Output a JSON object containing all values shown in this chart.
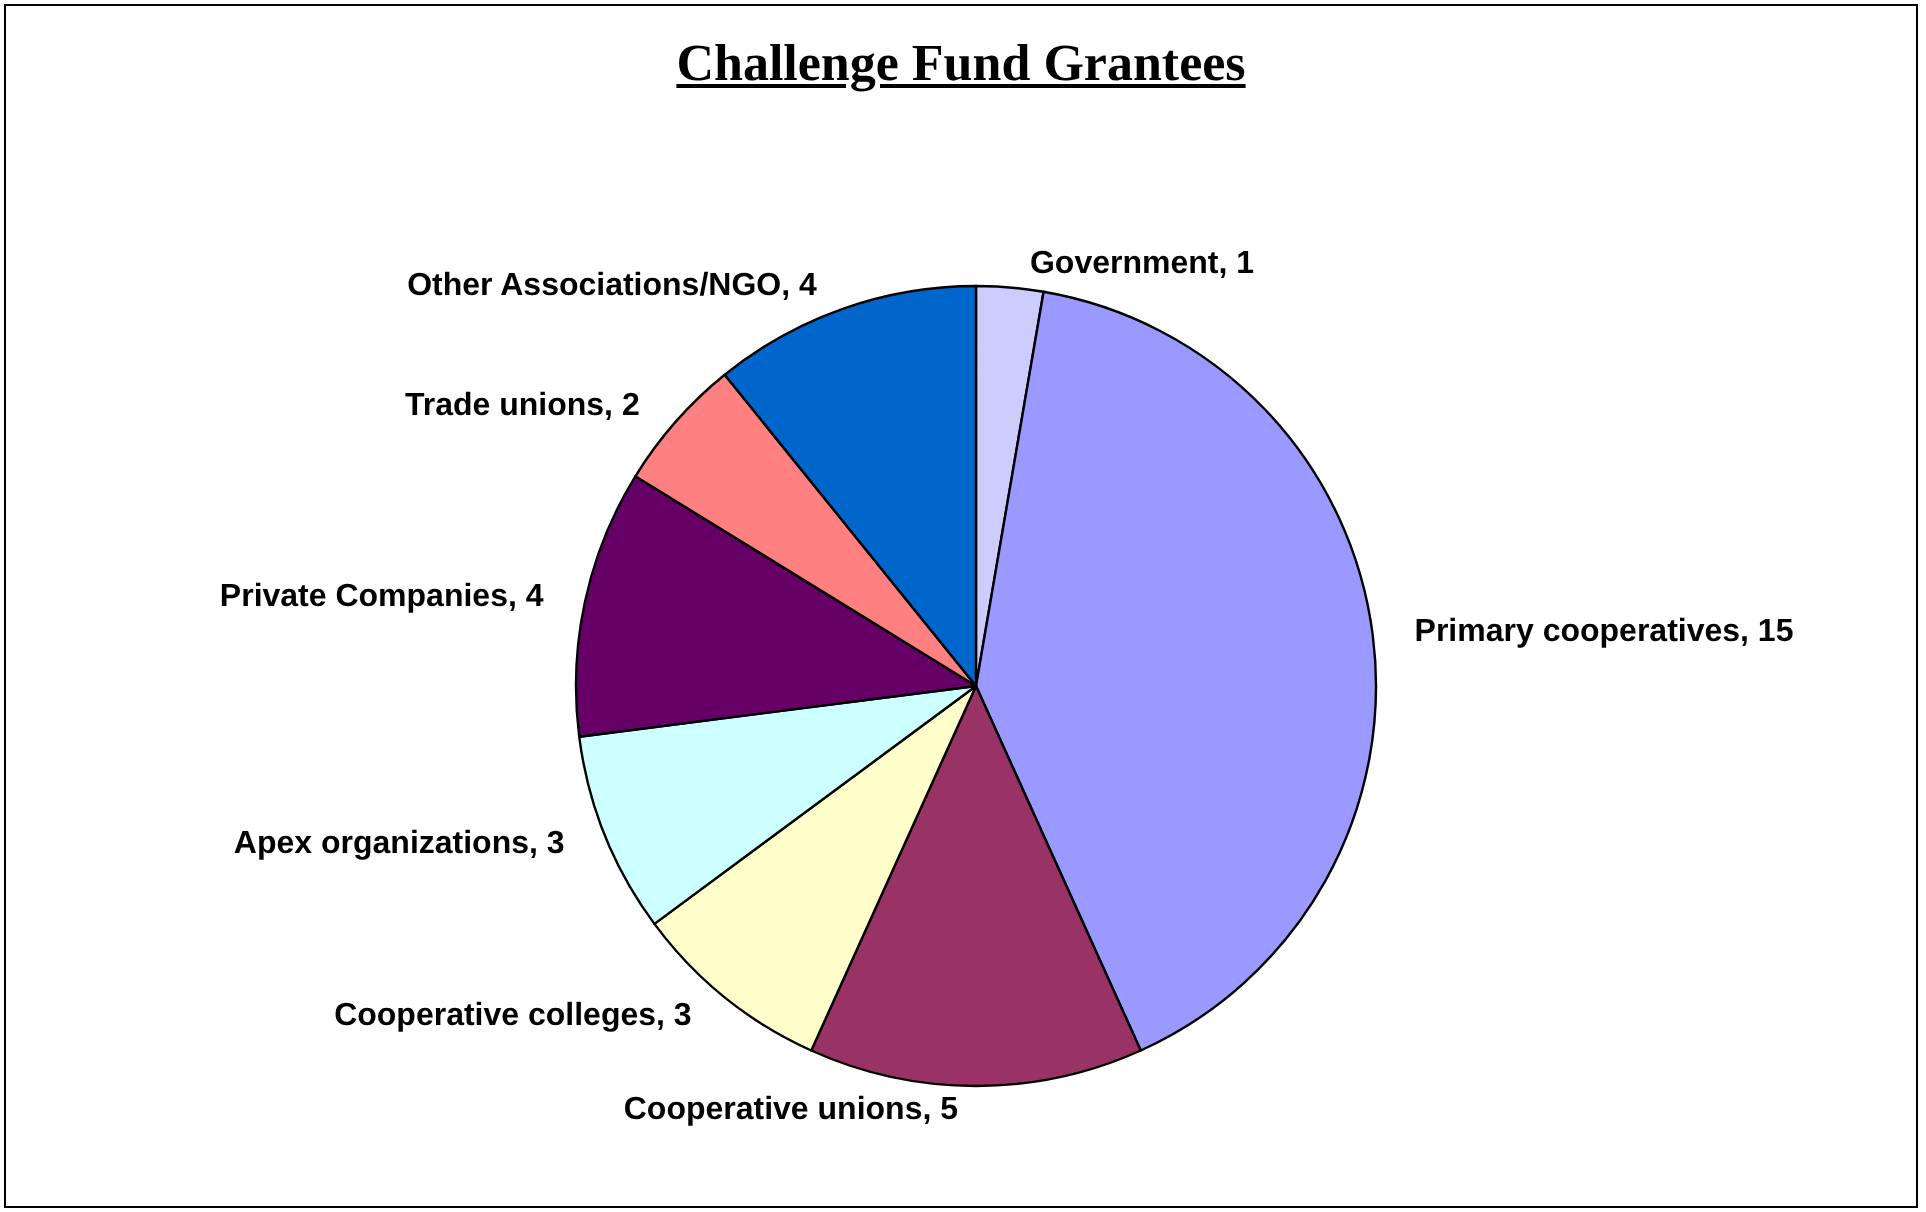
{
  "chart_data": {
    "type": "pie",
    "title": "Challenge Fund Grantees",
    "categories": [
      "Government",
      "Primary cooperatives",
      "Cooperative unions",
      "Cooperative colleges",
      "Apex organizations",
      "Private Companies",
      "Trade unions",
      "Other Associations/NGO"
    ],
    "values": [
      1,
      15,
      5,
      3,
      3,
      4,
      2,
      4
    ],
    "value_labels": [
      ", 1",
      ", 15",
      ", 5",
      ", 3",
      ", 3",
      ", 4",
      ", 2",
      ", 4"
    ],
    "colors": [
      "#ccccff",
      "#9999ff",
      "#993366",
      "#ffffcc",
      "#ccffff",
      "#660066",
      "#ff8080",
      "#0066cc"
    ],
    "legend": false
  }
}
